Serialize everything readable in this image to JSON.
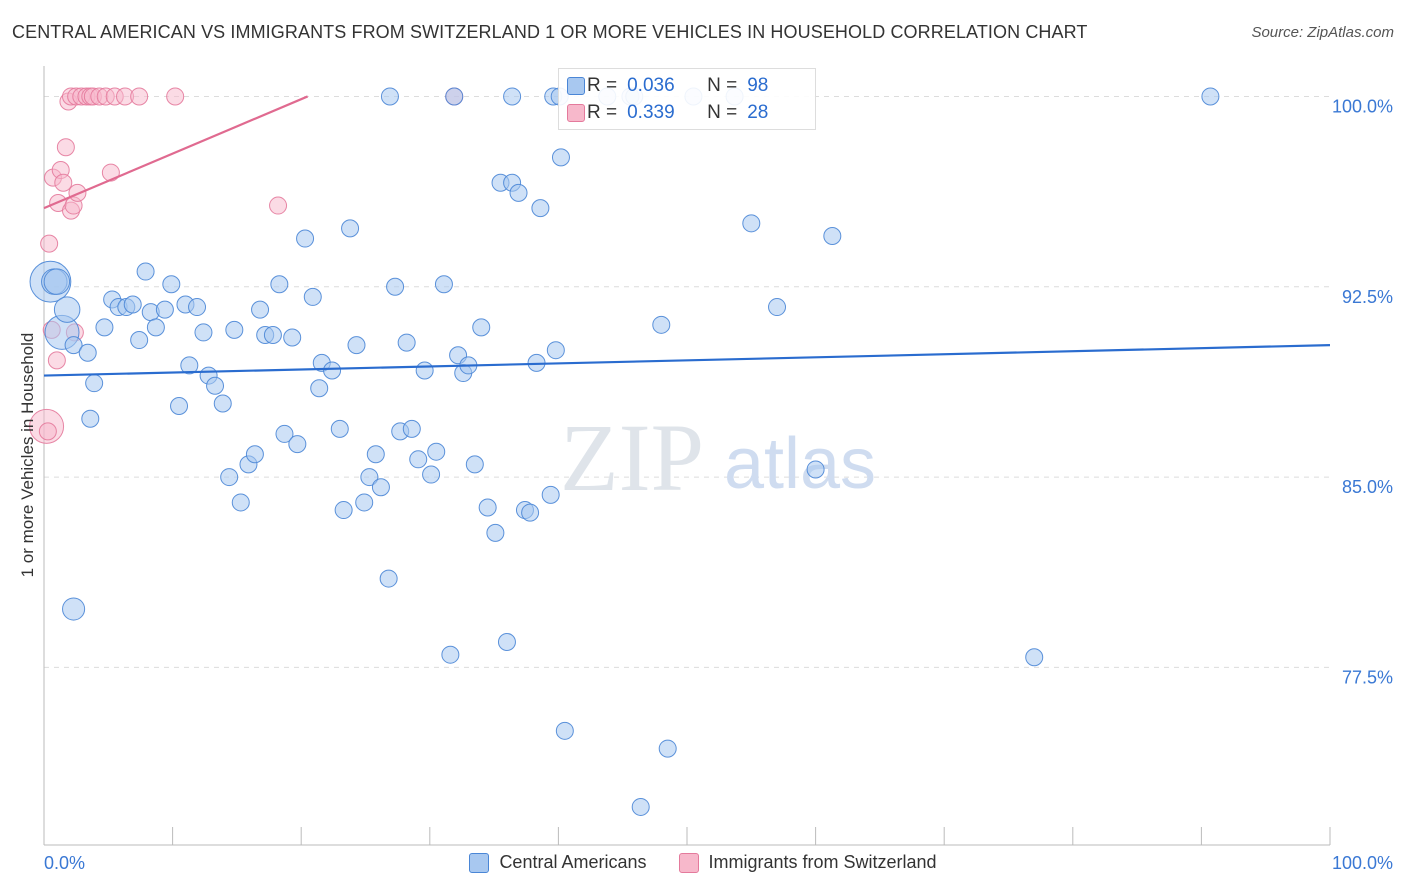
{
  "title": "CENTRAL AMERICAN VS IMMIGRANTS FROM SWITZERLAND 1 OR MORE VEHICLES IN HOUSEHOLD CORRELATION CHART",
  "source": "Source: ZipAtlas.com",
  "watermark": {
    "zip": "ZIP",
    "atlas": "atlas"
  },
  "stats": {
    "r_label": "R =",
    "n_label": "N =",
    "blue": {
      "r": "0.036",
      "n": "98"
    },
    "pink": {
      "r": "0.339",
      "n": "28"
    }
  },
  "colors": {
    "blue_fill": "#a8c8f0",
    "blue_stroke": "#4a86d6",
    "blue_line": "#2a6ccf",
    "pink_fill": "#f7b8cb",
    "pink_stroke": "#e47a9c",
    "pink_line": "#e06a90",
    "axis_text": "#3a78d4"
  },
  "chart_data": {
    "type": "scatter",
    "title": "CENTRAL AMERICAN VS IMMIGRANTS FROM SWITZERLAND 1 OR MORE VEHICLES IN HOUSEHOLD CORRELATION CHART",
    "xlabel": "",
    "ylabel": "1 or more Vehicles in Household",
    "xlim": [
      0,
      100
    ],
    "ylim": [
      70.5,
      101.2
    ],
    "x_tick_labels": [
      "0.0%",
      "100.0%"
    ],
    "y_ticks": [
      {
        "value": 100.0,
        "label": "100.0%"
      },
      {
        "value": 92.5,
        "label": "92.5%"
      },
      {
        "value": 85.0,
        "label": "85.0%"
      },
      {
        "value": 77.5,
        "label": "77.5%"
      }
    ],
    "series": [
      {
        "name": "Central Americans",
        "color": "blue",
        "trend": {
          "x": [
            0,
            100
          ],
          "y": [
            89.0,
            90.2
          ]
        },
        "points": [
          [
            0.5,
            92.7,
            2.4
          ],
          [
            0.8,
            92.7,
            1.5
          ],
          [
            1.0,
            92.7,
            1.5
          ],
          [
            1.4,
            90.7,
            2.0
          ],
          [
            1.8,
            91.6,
            1.5
          ],
          [
            2.3,
            90.2,
            1.0
          ],
          [
            3.4,
            89.9,
            1.0
          ],
          [
            3.9,
            88.7,
            1.0
          ],
          [
            3.6,
            87.3,
            1.0
          ],
          [
            2.3,
            79.8,
            1.3
          ],
          [
            4.7,
            90.9,
            1.0
          ],
          [
            5.3,
            92.0,
            1.0
          ],
          [
            5.8,
            91.7,
            1.0
          ],
          [
            6.4,
            91.7,
            1.0
          ],
          [
            6.9,
            91.8,
            1.0
          ],
          [
            7.4,
            90.4,
            1.0
          ],
          [
            7.9,
            93.1,
            1.0
          ],
          [
            8.3,
            91.5,
            1.0
          ],
          [
            8.7,
            90.9,
            1.0
          ],
          [
            9.4,
            91.6,
            1.0
          ],
          [
            9.9,
            92.6,
            1.0
          ],
          [
            10.5,
            87.8,
            1.0
          ],
          [
            11.0,
            91.8,
            1.0
          ],
          [
            11.3,
            89.4,
            1.0
          ],
          [
            11.9,
            91.7,
            1.0
          ],
          [
            12.4,
            90.7,
            1.0
          ],
          [
            12.8,
            89.0,
            1.0
          ],
          [
            13.3,
            88.6,
            1.0
          ],
          [
            13.9,
            87.9,
            1.0
          ],
          [
            14.4,
            85.0,
            1.0
          ],
          [
            14.8,
            90.8,
            1.0
          ],
          [
            15.3,
            84.0,
            1.0
          ],
          [
            15.9,
            85.5,
            1.0
          ],
          [
            16.4,
            85.9,
            1.0
          ],
          [
            16.8,
            91.6,
            1.0
          ],
          [
            17.2,
            90.6,
            1.0
          ],
          [
            17.8,
            90.6,
            1.0
          ],
          [
            18.3,
            92.6,
            1.0
          ],
          [
            18.7,
            86.7,
            1.0
          ],
          [
            19.3,
            90.5,
            1.0
          ],
          [
            19.7,
            86.3,
            1.0
          ],
          [
            20.3,
            94.4,
            1.0
          ],
          [
            20.9,
            92.1,
            1.0
          ],
          [
            21.4,
            88.5,
            1.0
          ],
          [
            21.6,
            89.5,
            1.0
          ],
          [
            22.4,
            89.2,
            1.0
          ],
          [
            23.0,
            86.9,
            1.0
          ],
          [
            23.3,
            83.7,
            1.0
          ],
          [
            23.8,
            94.8,
            1.0
          ],
          [
            24.3,
            90.2,
            1.0
          ],
          [
            24.9,
            84.0,
            1.0
          ],
          [
            25.3,
            85.0,
            1.0
          ],
          [
            25.8,
            85.9,
            1.0
          ],
          [
            26.2,
            84.6,
            1.0
          ],
          [
            26.8,
            81.0,
            1.0
          ],
          [
            27.3,
            92.5,
            1.0
          ],
          [
            27.7,
            86.8,
            1.0
          ],
          [
            28.2,
            90.3,
            1.0
          ],
          [
            28.6,
            86.9,
            1.0
          ],
          [
            29.1,
            85.7,
            1.0
          ],
          [
            29.6,
            89.2,
            1.0
          ],
          [
            30.1,
            85.1,
            1.0
          ],
          [
            30.5,
            86.0,
            1.0
          ],
          [
            31.1,
            92.6,
            1.0
          ],
          [
            31.6,
            78.0,
            1.0
          ],
          [
            32.2,
            89.8,
            1.0
          ],
          [
            32.6,
            89.1,
            1.0
          ],
          [
            33.0,
            89.4,
            1.0
          ],
          [
            33.5,
            85.5,
            1.0
          ],
          [
            34.0,
            90.9,
            1.0
          ],
          [
            34.5,
            83.8,
            1.0
          ],
          [
            35.1,
            82.8,
            1.0
          ],
          [
            35.5,
            96.6,
            1.0
          ],
          [
            36.0,
            78.5,
            1.0
          ],
          [
            36.4,
            96.6,
            1.0
          ],
          [
            36.9,
            96.2,
            1.0
          ],
          [
            37.4,
            83.7,
            1.0
          ],
          [
            37.8,
            83.6,
            1.0
          ],
          [
            38.3,
            89.5,
            1.0
          ],
          [
            38.6,
            95.6,
            1.0
          ],
          [
            39.4,
            84.3,
            1.0
          ],
          [
            39.8,
            90.0,
            1.0
          ],
          [
            40.2,
            97.6,
            1.0
          ],
          [
            39.6,
            100.0,
            1.0
          ],
          [
            40.1,
            100.0,
            1.0
          ],
          [
            43.8,
            100.0,
            1.0
          ],
          [
            45.6,
            100.0,
            1.0
          ],
          [
            45.9,
            100.0,
            1.0
          ],
          [
            46.4,
            72.0,
            1.0
          ],
          [
            48.0,
            91.0,
            1.0
          ],
          [
            48.5,
            74.3,
            1.0
          ],
          [
            50.5,
            100.0,
            1.0
          ],
          [
            53.7,
            100.0,
            1.0
          ],
          [
            55.0,
            95.0,
            1.0
          ],
          [
            57.0,
            91.7,
            1.0
          ],
          [
            60.0,
            85.3,
            1.0
          ],
          [
            61.3,
            94.5,
            1.0
          ],
          [
            77.0,
            77.9,
            1.0
          ],
          [
            90.7,
            100.0,
            1.0
          ],
          [
            36.4,
            100.0,
            1.0
          ],
          [
            40.5,
            75.0,
            1.0
          ],
          [
            31.9,
            100.0,
            1.0
          ],
          [
            26.9,
            100.0,
            1.0
          ]
        ]
      },
      {
        "name": "Immigrants from Switzerland",
        "color": "pink",
        "trend": {
          "x": [
            0,
            20.5
          ],
          "y": [
            95.6,
            100.0
          ]
        },
        "points": [
          [
            0.2,
            87.0,
            2.0
          ],
          [
            0.3,
            86.8,
            1.0
          ],
          [
            0.4,
            94.2,
            1.0
          ],
          [
            0.6,
            90.8,
            1.0
          ],
          [
            0.7,
            96.8,
            1.0
          ],
          [
            1.0,
            89.6,
            1.0
          ],
          [
            1.1,
            95.8,
            1.0
          ],
          [
            1.3,
            97.1,
            1.0
          ],
          [
            1.5,
            96.6,
            1.0
          ],
          [
            1.7,
            98.0,
            1.0
          ],
          [
            1.9,
            99.8,
            1.0
          ],
          [
            2.1,
            95.5,
            1.0
          ],
          [
            2.3,
            95.7,
            1.0
          ],
          [
            2.1,
            100.0,
            1.0
          ],
          [
            2.6,
            96.2,
            1.0
          ],
          [
            2.5,
            100.0,
            1.0
          ],
          [
            2.9,
            100.0,
            1.0
          ],
          [
            3.3,
            100.0,
            1.0
          ],
          [
            3.6,
            100.0,
            1.0
          ],
          [
            3.8,
            100.0,
            1.0
          ],
          [
            4.3,
            100.0,
            1.0
          ],
          [
            4.8,
            100.0,
            1.0
          ],
          [
            5.2,
            97.0,
            1.0
          ],
          [
            5.5,
            100.0,
            1.0
          ],
          [
            6.3,
            100.0,
            1.0
          ],
          [
            7.4,
            100.0,
            1.0
          ],
          [
            10.2,
            100.0,
            1.0
          ],
          [
            18.2,
            95.7,
            1.0
          ],
          [
            31.9,
            100.0,
            1.0
          ],
          [
            2.4,
            90.7,
            1.0
          ]
        ]
      }
    ]
  }
}
